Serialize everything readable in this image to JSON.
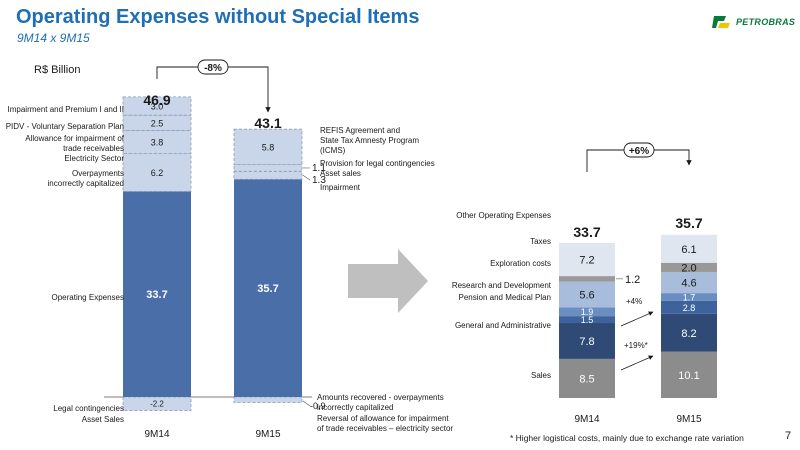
{
  "header": {
    "title": "Operating Expenses without Special Items",
    "subtitle": "9M14 x 9M15",
    "logo_text": "PETROBRAS",
    "unit": "R$ Billion"
  },
  "footer": {
    "footnote": "* Higher logistical costs, mainly due to exchange rate variation",
    "page": "7"
  },
  "colors": {
    "operating": "#4a6ea8",
    "special_fill": "#c9d5e8",
    "special_border": "#8a9bb8",
    "gray_arrow": "#bfbfbf",
    "sales": "#8c8c8c",
    "general_admin": "#2e4a75",
    "pension": "#3e639c",
    "research": "#6a8dc2",
    "exploration": "#a8bcdb",
    "taxes": "#999999",
    "other": "#dfe6f0"
  },
  "chart_data": [
    {
      "type": "bar",
      "stacked": true,
      "categories": [
        "9M14",
        "9M15"
      ],
      "totals": [
        46.9,
        43.1
      ],
      "change_label": "-8%",
      "series": [
        {
          "name": "Legal contingencies / Asset Sales",
          "values": [
            -2.2,
            -0.9
          ]
        },
        {
          "name": "Operating Expenses",
          "values": [
            33.7,
            35.7
          ]
        },
        {
          "name": "Overpayments incorrectly capitalized",
          "values": [
            6.2,
            0
          ]
        },
        {
          "name": "Allowance for impairment of trade receivables Electricity Sector",
          "values": [
            3.8,
            0
          ]
        },
        {
          "name": "PIDV - Voluntary Separation Plan",
          "values": [
            2.5,
            0
          ]
        },
        {
          "name": "Impairment and Premium I and II",
          "values": [
            3.0,
            0
          ]
        },
        {
          "name": "Impairment",
          "values": [
            0,
            1.3
          ]
        },
        {
          "name": "Provision for legal contingencies Asset sales",
          "values": [
            0,
            1.1
          ]
        },
        {
          "name": "REFIS Agreement and State Tax Amnesty Program (ICMS)",
          "values": [
            0,
            5.8
          ]
        }
      ],
      "left_labels": {
        "impairment_premium": "Impairment and Premium I and II",
        "pidv": "PIDV - Voluntary Separation Plan",
        "allowance_1": "Allowance for impairment of",
        "allowance_2": "trade receivables",
        "allowance_3": "Electricity Sector",
        "overpay_1": "Overpayments",
        "overpay_2": "incorrectly capitalized",
        "operating": "Operating Expenses",
        "legal": "Legal contingencies",
        "asset": "Asset Sales"
      },
      "right_labels": {
        "refis_1": "REFIS Agreement and",
        "refis_2": "State Tax Amnesty Program",
        "refis_3": "(ICMS)",
        "provision_1": "Provision for legal contingencies",
        "provision_2": "Asset sales",
        "impairment": "Impairment",
        "recovered_1": "Amounts recovered - overpayments",
        "recovered_2": "incorrectly capitalized",
        "reversal_1": "Reversal of  allowance for impairment",
        "reversal_2": "of trade receivables – electricity sector"
      }
    },
    {
      "type": "bar",
      "stacked": true,
      "categories": [
        "9M14",
        "9M15"
      ],
      "totals": [
        33.7,
        35.7
      ],
      "change_label": "+6%",
      "series": [
        {
          "name": "Sales",
          "values": [
            8.5,
            10.1
          ]
        },
        {
          "name": "General and Administrative",
          "values": [
            7.8,
            8.2
          ]
        },
        {
          "name": "Pension and Medical Plan",
          "values": [
            1.5,
            2.8
          ]
        },
        {
          "name": "Research and Development",
          "values": [
            1.9,
            1.7
          ]
        },
        {
          "name": "Exploration costs",
          "values": [
            5.6,
            4.6
          ]
        },
        {
          "name": "Taxes",
          "values": [
            1.2,
            2.0
          ]
        },
        {
          "name": "Other Operating Expenses",
          "values": [
            7.2,
            6.1
          ]
        }
      ],
      "annotations": {
        "general_admin": "+4%",
        "sales": "+19%*"
      }
    }
  ]
}
